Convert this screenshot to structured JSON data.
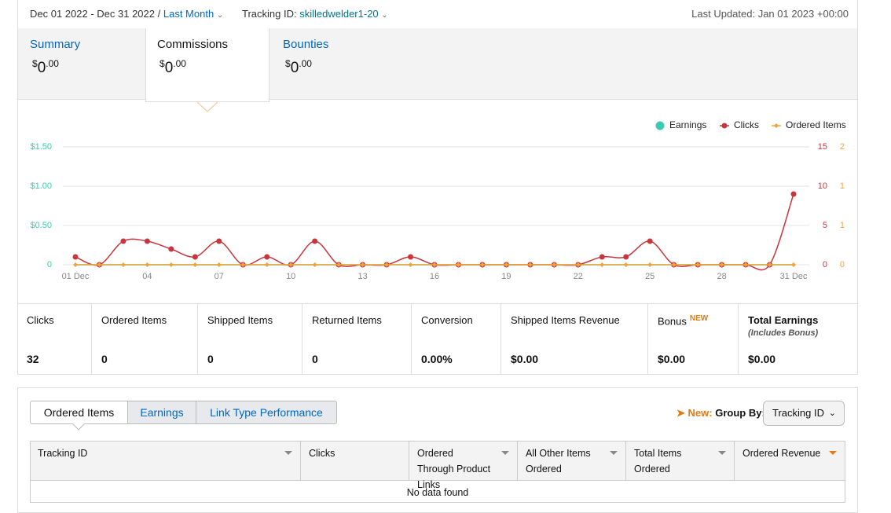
{
  "header": {
    "date_range": "Dec 01 2022 - Dec 31 2022",
    "separator": "/",
    "period": "Last Month",
    "tracking_label": "Tracking ID:",
    "tracking_id": "skilledwelder1-20",
    "last_updated": "Last Updated: Jan 01 2023 +00:00"
  },
  "tabs": [
    {
      "label": "Summary",
      "currency": "$",
      "whole": "0",
      "fraction": ".00"
    },
    {
      "label": "Commissions",
      "currency": "$",
      "whole": "0",
      "fraction": ".00"
    },
    {
      "label": "Bounties",
      "currency": "$",
      "whole": "0",
      "fraction": ".00"
    }
  ],
  "chart_data": {
    "type": "line",
    "x": [
      1,
      2,
      3,
      4,
      5,
      6,
      7,
      8,
      9,
      10,
      11,
      12,
      13,
      14,
      15,
      16,
      17,
      18,
      19,
      20,
      21,
      22,
      23,
      24,
      25,
      26,
      27,
      28,
      29,
      30,
      31
    ],
    "xlim": [
      1,
      31
    ],
    "xticks": [
      {
        "value": 1,
        "label": "01 Dec"
      },
      {
        "value": 4,
        "label": "04"
      },
      {
        "value": 7,
        "label": "07"
      },
      10,
      13,
      16,
      19,
      22,
      25,
      28,
      {
        "value": 31,
        "label": "31 Dec"
      }
    ],
    "ylim": [
      0,
      1.5
    ],
    "yticks": [
      0,
      {
        "value": 0.5,
        "label": "$0.50"
      },
      {
        "value": 1,
        "label": "$1.00"
      },
      {
        "value": 1.5,
        "label": "$1.50"
      }
    ],
    "y2lim": [
      0,
      15
    ],
    "y2ticks": [
      0,
      5,
      10,
      15
    ],
    "y3lim": [
      0,
      2
    ],
    "y3ticks": [
      0,
      {
        "value": 0.6667,
        "label": "1"
      },
      {
        "value": 1.3333,
        "label": "1"
      },
      2
    ],
    "grid": true,
    "legend_position": "top-right",
    "series": [
      {
        "name": "Earnings",
        "color": "#3ccab2",
        "axis": "y",
        "values": [
          0,
          0,
          0,
          0,
          0,
          0,
          0,
          0,
          0,
          0,
          0,
          0,
          0,
          0,
          0,
          0,
          0,
          0,
          0,
          0,
          0,
          0,
          0,
          0,
          0,
          0,
          0,
          0,
          0,
          0,
          0
        ]
      },
      {
        "name": "Clicks",
        "color": "#c8363d",
        "axis": "y2",
        "values": [
          1,
          0,
          3,
          3,
          2,
          1,
          3,
          0,
          1,
          0,
          3,
          0,
          0,
          0,
          1,
          0,
          0,
          0,
          0,
          0,
          0,
          0,
          1,
          1,
          3,
          0,
          0,
          0,
          0,
          0,
          9
        ]
      },
      {
        "name": "Ordered Items",
        "color": "#f0a33a",
        "axis": "y3",
        "values": [
          0,
          0,
          0,
          0,
          0,
          0,
          0,
          0,
          0,
          0,
          0,
          0,
          0,
          0,
          0,
          0,
          0,
          0,
          0,
          0,
          0,
          0,
          0,
          0,
          0,
          0,
          0,
          0,
          0,
          0,
          0
        ]
      }
    ]
  },
  "stats": [
    {
      "label": "Clicks",
      "value": 32
    },
    {
      "label": "Ordered Items",
      "value": 0
    },
    {
      "label": "Shipped Items",
      "value": 0
    },
    {
      "label": "Returned Items",
      "value": 0
    },
    {
      "label": "Conversion",
      "value": "0.00%"
    },
    {
      "label": "Shipped Items Revenue",
      "value": "$0.00"
    },
    {
      "label": "Bonus",
      "badge": "NEW",
      "value": "$0.00"
    },
    {
      "label": "Total Earnings",
      "note": "(Includes Bonus)",
      "value": "$0.00"
    }
  ],
  "report_tabs": [
    "Ordered Items",
    "Earnings",
    "Link Type Performance"
  ],
  "group_by": {
    "new": "New:",
    "label": "Group By:",
    "selected": "Tracking ID"
  },
  "table": {
    "columns": [
      "Tracking ID",
      "Clicks",
      "Ordered Through Product Links",
      "All Other Items Ordered",
      "Total Items Ordered",
      "Ordered Revenue"
    ],
    "empty": "No data found"
  }
}
